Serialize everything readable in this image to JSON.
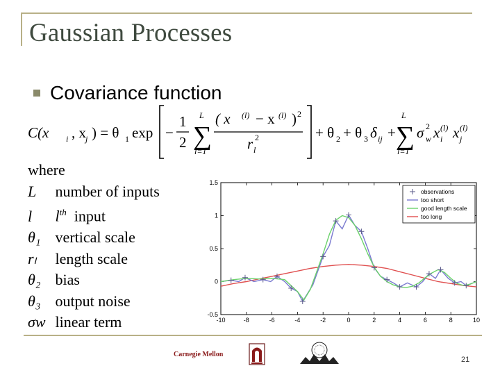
{
  "title": "Gaussian Processes",
  "bullet": "Covariance function",
  "formula": {
    "lhs": "C(x",
    "lhs_i": "i",
    "lhs_sep": ", x",
    "lhs_j": "j",
    "lhs_close": ") = θ",
    "theta1_sub": "1",
    "exp": "exp",
    "half_num": "1",
    "half_den": "2",
    "sum_top": "L",
    "sum_bottom": "l=1",
    "term_num": "( x",
    "term_sup": "(l)",
    "term_minus": "− x",
    "term_close": ")",
    "term_sq": "2",
    "term_den": "r",
    "term_den_sub": "l",
    "plus_theta2": "+ θ",
    "theta2_sub": "2",
    "plus_theta3": "+ θ",
    "theta3_sub": "3",
    "delta": "δ",
    "delta_sub": "ij",
    "plus": "+",
    "sigma": "σ",
    "sigma_sub": "w",
    "x_term": "x"
  },
  "definitions": {
    "header": "where",
    "rows": [
      {
        "sym": "L",
        "text": "number of inputs"
      },
      {
        "sym": "l",
        "text": "l",
        "sup": "th",
        "rest": "input"
      },
      {
        "sym": "θ₁",
        "text": "vertical scale"
      },
      {
        "sym": "rₗ",
        "text": "length scale"
      },
      {
        "sym": "θ₂",
        "text": "bias"
      },
      {
        "sym": "θ₃",
        "text": "output noise"
      },
      {
        "sym": "σw",
        "text": "linear term"
      }
    ]
  },
  "chart_data": {
    "type": "line",
    "xlim": [
      -10,
      10
    ],
    "ylim": [
      -0.5,
      1.5
    ],
    "x_ticks": [
      "-10",
      "-8",
      "-6",
      "-4",
      "-2",
      "0",
      "2",
      "4",
      "6",
      "8",
      "10"
    ],
    "y_ticks": [
      "-0.5",
      "0",
      "0.5",
      "1",
      "1.5"
    ],
    "legend_position": "top-right",
    "series": [
      {
        "name": "observations",
        "style": "markers",
        "color": "#5a5a8a",
        "x": [
          -9.2,
          -8.1,
          -6.7,
          -5.6,
          -4.5,
          -3.6,
          -2.0,
          -1.0,
          0.0,
          1.0,
          2.0,
          3.0,
          4.0,
          5.3,
          6.3,
          7.2,
          8.3,
          9.2
        ],
        "y": [
          0.02,
          0.06,
          0.03,
          0.08,
          -0.1,
          -0.3,
          0.38,
          0.92,
          1.01,
          0.76,
          0.21,
          0.03,
          -0.08,
          -0.08,
          0.12,
          0.18,
          -0.02,
          -0.06
        ]
      },
      {
        "name": "too short",
        "style": "line",
        "color": "#7a7ad0",
        "x": [
          -10,
          -9.2,
          -8.6,
          -8.1,
          -7.4,
          -6.7,
          -6.1,
          -5.6,
          -5.0,
          -4.5,
          -4.0,
          -3.6,
          -2.8,
          -2.0,
          -1.5,
          -1.0,
          -0.5,
          0.0,
          0.5,
          1.0,
          1.5,
          2.0,
          2.5,
          3.0,
          3.5,
          4.0,
          4.6,
          5.3,
          5.8,
          6.3,
          6.8,
          7.2,
          7.8,
          8.3,
          8.8,
          9.2,
          10
        ],
        "y": [
          0.0,
          0.02,
          0.0,
          0.06,
          0.0,
          0.03,
          0.0,
          0.08,
          0.0,
          -0.1,
          -0.15,
          -0.3,
          -0.05,
          0.38,
          0.55,
          0.92,
          0.8,
          1.01,
          0.85,
          0.76,
          0.5,
          0.21,
          0.08,
          0.03,
          -0.02,
          -0.08,
          -0.02,
          -0.08,
          0.0,
          0.12,
          0.05,
          0.18,
          0.05,
          -0.02,
          0.0,
          -0.06,
          0.0
        ]
      },
      {
        "name": "good length scale",
        "style": "line",
        "color": "#6cd26c",
        "x": [
          -10,
          -9,
          -8,
          -7,
          -6,
          -5,
          -4,
          -3.5,
          -3,
          -2.5,
          -2,
          -1.5,
          -1,
          -0.5,
          0,
          0.5,
          1,
          1.5,
          2,
          2.5,
          3,
          3.5,
          4,
          4.5,
          5,
          5.5,
          6,
          6.5,
          7,
          7.5,
          8,
          8.5,
          9,
          9.5,
          10
        ],
        "y": [
          0.0,
          0.03,
          0.05,
          0.04,
          0.05,
          0.03,
          -0.15,
          -0.28,
          -0.12,
          0.15,
          0.42,
          0.72,
          0.93,
          1.0,
          0.97,
          0.85,
          0.65,
          0.42,
          0.22,
          0.08,
          0.0,
          -0.05,
          -0.08,
          -0.09,
          -0.07,
          -0.02,
          0.06,
          0.13,
          0.18,
          0.14,
          0.05,
          -0.03,
          -0.06,
          -0.04,
          0.0
        ]
      },
      {
        "name": "too long",
        "style": "line",
        "color": "#e05050",
        "x": [
          -10,
          -9,
          -8,
          -7,
          -6,
          -5,
          -4,
          -3,
          -2,
          -1,
          0,
          1,
          2,
          3,
          4,
          5,
          6,
          7,
          8,
          9,
          10
        ],
        "y": [
          -0.07,
          -0.03,
          0.0,
          0.04,
          0.08,
          0.12,
          0.16,
          0.2,
          0.23,
          0.25,
          0.26,
          0.25,
          0.23,
          0.2,
          0.15,
          0.1,
          0.05,
          0.0,
          -0.03,
          -0.06,
          -0.08
        ]
      }
    ]
  },
  "footer": {
    "logo_text": "Carnegie Mellon",
    "page_number": "21"
  }
}
